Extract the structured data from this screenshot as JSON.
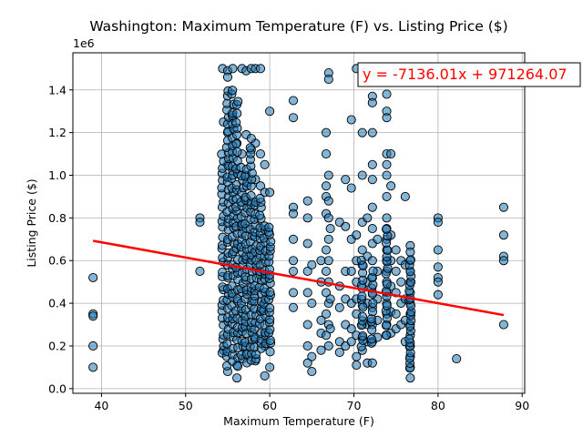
{
  "chart_data": {
    "type": "scatter",
    "title": "Washington: Maximum Temperature (F) vs. Listing Price ($)",
    "xlabel": "Maximum Temperature (F)",
    "ylabel": "Listing Price ($)",
    "y_offset_label": "1e6",
    "xlim": [
      36.6,
      90.3
    ],
    "ylim": [
      -0.022,
      1.574
    ],
    "x_ticks": [
      40,
      50,
      60,
      70,
      80,
      90
    ],
    "y_ticks": [
      0.0,
      0.2,
      0.4,
      0.6,
      0.8,
      1.0,
      1.2,
      1.4
    ],
    "y_tick_labels": [
      "0.0",
      "0.2",
      "0.4",
      "0.6",
      "0.8",
      "1.0",
      "1.2",
      "1.4"
    ],
    "grid": true,
    "marker_color": "#1f77b4",
    "regression": {
      "equation": "y = -7136.01x + 971264.07",
      "slope": -7136.01,
      "intercept": 971264.07,
      "x_range": [
        39.0,
        87.8
      ],
      "color": "#ff0000"
    },
    "points": [
      [
        39.0,
        0.52
      ],
      [
        39.0,
        0.35
      ],
      [
        39.0,
        0.34
      ],
      [
        39.0,
        0.2
      ],
      [
        39.0,
        0.1
      ],
      [
        51.7,
        0.8
      ],
      [
        51.7,
        0.78
      ],
      [
        51.7,
        0.55
      ],
      [
        62.8,
        1.35
      ],
      [
        62.8,
        1.27
      ],
      [
        62.8,
        0.85
      ],
      [
        62.8,
        0.82
      ],
      [
        62.8,
        0.7
      ],
      [
        62.8,
        0.6
      ],
      [
        62.8,
        0.55
      ],
      [
        62.8,
        0.45
      ],
      [
        62.8,
        0.38
      ],
      [
        80.0,
        0.8
      ],
      [
        80.0,
        0.78
      ],
      [
        80.0,
        0.65
      ],
      [
        80.0,
        0.57
      ],
      [
        80.0,
        0.52
      ],
      [
        80.0,
        0.5
      ],
      [
        80.0,
        0.44
      ],
      [
        82.2,
        0.14
      ],
      [
        87.8,
        0.85
      ],
      [
        87.8,
        0.72
      ],
      [
        87.8,
        0.62
      ],
      [
        87.8,
        0.6
      ],
      [
        87.8,
        0.3
      ],
      [
        64.5,
        0.88
      ],
      [
        64.5,
        0.8
      ],
      [
        64.5,
        0.68
      ],
      [
        64.5,
        0.55
      ],
      [
        64.5,
        0.45
      ],
      [
        64.5,
        0.3
      ],
      [
        64.5,
        0.2
      ],
      [
        64.5,
        0.12
      ],
      [
        65.0,
        0.58
      ],
      [
        65.0,
        0.4
      ],
      [
        65.0,
        0.15
      ],
      [
        65.0,
        0.08
      ],
      [
        66.1,
        0.6
      ],
      [
        66.1,
        0.5
      ],
      [
        66.1,
        0.32
      ],
      [
        66.1,
        0.26
      ],
      [
        66.1,
        0.18
      ],
      [
        66.7,
        1.2
      ],
      [
        66.7,
        1.1
      ],
      [
        66.7,
        0.95
      ],
      [
        66.7,
        0.9
      ],
      [
        66.7,
        0.82
      ],
      [
        66.7,
        0.65
      ],
      [
        66.7,
        0.55
      ],
      [
        66.7,
        0.45
      ],
      [
        66.7,
        0.35
      ],
      [
        66.7,
        0.25
      ],
      [
        67.0,
        1.48
      ],
      [
        67.0,
        1.45
      ],
      [
        67.0,
        1.0
      ],
      [
        67.0,
        0.88
      ],
      [
        67.0,
        0.8
      ],
      [
        67.0,
        0.7
      ],
      [
        67.0,
        0.6
      ],
      [
        67.0,
        0.5
      ],
      [
        67.0,
        0.4
      ],
      [
        67.0,
        0.3
      ],
      [
        67.0,
        0.2
      ],
      [
        67.2,
        0.75
      ],
      [
        67.2,
        0.42
      ],
      [
        67.2,
        0.28
      ],
      [
        68.3,
        0.78
      ],
      [
        68.3,
        0.48
      ],
      [
        68.3,
        0.38
      ],
      [
        68.3,
        0.22
      ],
      [
        68.3,
        0.17
      ],
      [
        69.0,
        0.98
      ],
      [
        69.0,
        0.76
      ],
      [
        69.0,
        0.55
      ],
      [
        69.0,
        0.42
      ],
      [
        69.0,
        0.3
      ],
      [
        69.0,
        0.2
      ],
      [
        69.7,
        1.26
      ],
      [
        69.7,
        0.94
      ],
      [
        69.7,
        0.7
      ],
      [
        69.7,
        0.55
      ],
      [
        69.7,
        0.4
      ],
      [
        69.7,
        0.28
      ],
      [
        69.7,
        0.22
      ],
      [
        70.3,
        1.5
      ],
      [
        70.3,
        0.72
      ],
      [
        70.3,
        0.6
      ],
      [
        70.3,
        0.5
      ],
      [
        70.3,
        0.42
      ],
      [
        70.3,
        0.35
      ],
      [
        70.3,
        0.25
      ],
      [
        70.3,
        0.15
      ],
      [
        70.3,
        0.11
      ],
      [
        71.0,
        1.2
      ],
      [
        71.0,
        1.0
      ],
      [
        71.0,
        0.78
      ],
      [
        71.0,
        0.65
      ],
      [
        71.0,
        0.58
      ],
      [
        71.0,
        0.47
      ],
      [
        71.0,
        0.39
      ],
      [
        71.0,
        0.3
      ],
      [
        71.0,
        0.24
      ],
      [
        71.0,
        0.18
      ],
      [
        71.6,
        0.8
      ],
      [
        71.6,
        0.62
      ],
      [
        71.6,
        0.5
      ],
      [
        71.6,
        0.4
      ],
      [
        71.6,
        0.3
      ],
      [
        71.6,
        0.22
      ],
      [
        71.6,
        0.12
      ],
      [
        72.2,
        1.37
      ],
      [
        72.2,
        1.34
      ],
      [
        72.2,
        1.2
      ],
      [
        72.2,
        1.05
      ],
      [
        72.2,
        0.98
      ],
      [
        72.2,
        0.85
      ],
      [
        72.2,
        0.75
      ],
      [
        72.2,
        0.68
      ],
      [
        72.2,
        0.6
      ],
      [
        72.2,
        0.52
      ],
      [
        72.2,
        0.45
      ],
      [
        72.2,
        0.38
      ],
      [
        72.2,
        0.3
      ],
      [
        72.2,
        0.22
      ],
      [
        72.2,
        0.12
      ],
      [
        72.8,
        0.7
      ],
      [
        72.8,
        0.55
      ],
      [
        72.8,
        0.42
      ],
      [
        72.8,
        0.32
      ],
      [
        72.8,
        0.24
      ],
      [
        73.9,
        1.38
      ],
      [
        73.9,
        1.3
      ],
      [
        73.9,
        1.27
      ],
      [
        73.9,
        1.1
      ],
      [
        73.9,
        1.05
      ],
      [
        73.9,
        1.0
      ],
      [
        73.9,
        0.9
      ],
      [
        73.9,
        0.8
      ],
      [
        73.9,
        0.75
      ],
      [
        73.9,
        0.7
      ],
      [
        73.9,
        0.65
      ],
      [
        73.9,
        0.6
      ],
      [
        73.9,
        0.55
      ],
      [
        73.9,
        0.5
      ],
      [
        73.9,
        0.45
      ],
      [
        73.9,
        0.4
      ],
      [
        73.9,
        0.35
      ],
      [
        73.9,
        0.3
      ],
      [
        73.9,
        0.25
      ],
      [
        74.4,
        1.1
      ],
      [
        74.4,
        0.95
      ],
      [
        74.4,
        0.72
      ],
      [
        74.4,
        0.6
      ],
      [
        74.4,
        0.48
      ],
      [
        74.4,
        0.36
      ],
      [
        74.4,
        0.26
      ],
      [
        75.0,
        0.65
      ],
      [
        75.0,
        0.55
      ],
      [
        75.0,
        0.45
      ],
      [
        75.0,
        0.35
      ],
      [
        75.0,
        0.28
      ],
      [
        75.6,
        0.6
      ],
      [
        75.6,
        0.5
      ],
      [
        75.6,
        0.4
      ],
      [
        75.6,
        0.3
      ],
      [
        76.1,
        0.9
      ],
      [
        76.1,
        0.58
      ],
      [
        76.1,
        0.42
      ],
      [
        76.1,
        0.32
      ],
      [
        76.1,
        0.22
      ],
      [
        76.7,
        0.67
      ],
      [
        76.7,
        0.64
      ],
      [
        76.7,
        0.6
      ],
      [
        76.7,
        0.55
      ],
      [
        76.7,
        0.5
      ],
      [
        76.7,
        0.45
      ],
      [
        76.7,
        0.4
      ],
      [
        76.7,
        0.35
      ],
      [
        76.7,
        0.3
      ],
      [
        76.7,
        0.25
      ],
      [
        76.7,
        0.2
      ],
      [
        76.7,
        0.15
      ],
      [
        76.7,
        0.1
      ],
      [
        76.7,
        0.05
      ],
      [
        56.1,
        0.05
      ],
      [
        59.4,
        0.06
      ],
      [
        54.5,
        0.18
      ],
      [
        55.0,
        0.08
      ],
      [
        56.1,
        0.11
      ],
      [
        57.2,
        0.16
      ],
      [
        58.3,
        0.13
      ],
      [
        59.4,
        0.2
      ],
      [
        60.0,
        0.1
      ],
      [
        54.4,
        1.5
      ],
      [
        55.0,
        1.49
      ],
      [
        55.0,
        1.46
      ],
      [
        55.6,
        1.5
      ],
      [
        56.7,
        1.5
      ],
      [
        57.2,
        1.49
      ],
      [
        57.8,
        1.5
      ],
      [
        58.3,
        1.5
      ],
      [
        58.9,
        1.5
      ],
      [
        54.5,
        1.25
      ],
      [
        55.0,
        1.2
      ],
      [
        55.6,
        1.27
      ],
      [
        56.1,
        1.15
      ],
      [
        56.7,
        1.1
      ],
      [
        57.2,
        1.19
      ],
      [
        57.8,
        1.12
      ],
      [
        58.3,
        1.15
      ],
      [
        58.9,
        1.1
      ],
      [
        59.4,
        1.05
      ],
      [
        60.0,
        1.3
      ],
      [
        55.0,
        1.05
      ],
      [
        55.6,
        1.02
      ],
      [
        57.2,
        1.0
      ],
      [
        58.3,
        0.98
      ],
      [
        58.9,
        0.95
      ],
      [
        59.4,
        0.92
      ],
      [
        60.0,
        0.92
      ]
    ],
    "dense_columns": [
      {
        "x": 54.4,
        "ymin": 0.15,
        "ymax": 1.12,
        "n": 30
      },
      {
        "x": 55.0,
        "ymin": 0.1,
        "ymax": 1.42,
        "n": 40
      },
      {
        "x": 55.6,
        "ymin": 0.12,
        "ymax": 1.42,
        "n": 40
      },
      {
        "x": 56.1,
        "ymin": 0.1,
        "ymax": 1.38,
        "n": 36
      },
      {
        "x": 56.7,
        "ymin": 0.12,
        "ymax": 1.05,
        "n": 30
      },
      {
        "x": 57.2,
        "ymin": 0.12,
        "ymax": 1.05,
        "n": 30
      },
      {
        "x": 57.8,
        "ymin": 0.12,
        "ymax": 1.18,
        "n": 34
      },
      {
        "x": 58.3,
        "ymin": 0.12,
        "ymax": 0.9,
        "n": 26
      },
      {
        "x": 58.9,
        "ymin": 0.17,
        "ymax": 0.92,
        "n": 26
      },
      {
        "x": 59.4,
        "ymin": 0.2,
        "ymax": 0.78,
        "n": 20
      },
      {
        "x": 60.0,
        "ymin": 0.17,
        "ymax": 0.78,
        "n": 24
      },
      {
        "x": 76.7,
        "ymin": 0.08,
        "ymax": 0.62,
        "n": 22
      },
      {
        "x": 73.9,
        "ymin": 0.25,
        "ymax": 0.78,
        "n": 16
      },
      {
        "x": 71.0,
        "ymin": 0.18,
        "ymax": 0.62,
        "n": 14
      },
      {
        "x": 72.2,
        "ymin": 0.2,
        "ymax": 0.58,
        "n": 12
      }
    ]
  }
}
